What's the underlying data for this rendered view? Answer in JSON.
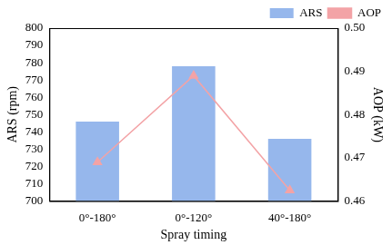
{
  "chart_data": {
    "type": "bar",
    "categories": [
      "0°-180°",
      "0°-120°",
      "40°-180°"
    ],
    "x_label": "Spray timing",
    "y_label": "ARS (rpm)",
    "y2_label": "AOP (kW)",
    "series": [
      {
        "name": "ARS",
        "type": "bar",
        "color": "#96b7ec",
        "values": [
          746,
          778,
          736
        ]
      },
      {
        "name": "AOP",
        "type": "line",
        "color": "#f3a3a6",
        "marker": "triangle",
        "axis": "y2",
        "values": [
          0.469,
          0.489,
          0.4625
        ]
      }
    ],
    "ylim": [
      700,
      800
    ],
    "yticks": [
      700,
      710,
      720,
      730,
      740,
      750,
      760,
      770,
      780,
      790,
      800
    ],
    "y2lim": [
      0.46,
      0.5
    ],
    "y2ticks": [
      0.46,
      0.47,
      0.48,
      0.49,
      {
        "value": 0.5,
        "label": "0.50"
      }
    ],
    "grid": false,
    "legend": "upper right"
  }
}
